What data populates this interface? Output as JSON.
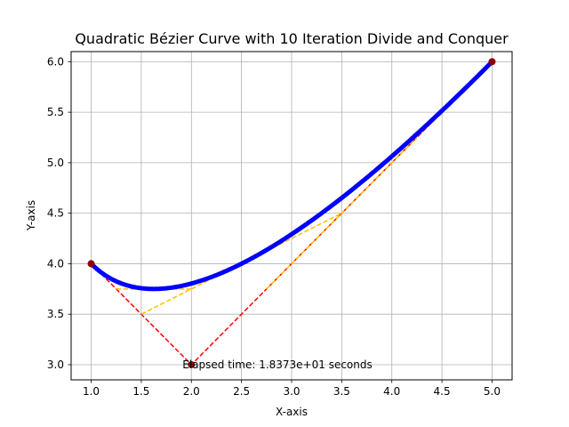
{
  "chart_data": {
    "type": "line",
    "title": "Quadratic Bézier Curve with 10 Iteration Divide and Conquer",
    "xlabel": "X-axis",
    "ylabel": "Y-axis",
    "xlim": [
      0.8,
      5.2
    ],
    "ylim": [
      2.85,
      6.1
    ],
    "xticks": [
      "1.0",
      "1.5",
      "2.0",
      "2.5",
      "3.0",
      "3.5",
      "4.0",
      "4.5",
      "5.0"
    ],
    "yticks": [
      "3.0",
      "3.5",
      "4.0",
      "4.5",
      "5.0",
      "5.5",
      "6.0"
    ],
    "grid": true,
    "control_points": [
      [
        1,
        4
      ],
      [
        2,
        3
      ],
      [
        5,
        6
      ]
    ],
    "control_polygon": {
      "color": "#ff0000",
      "style": "dashed",
      "points": [
        [
          1,
          4
        ],
        [
          2,
          3
        ],
        [
          5,
          6
        ]
      ]
    },
    "midpoint_lines": [
      {
        "color": "#ffc000",
        "style": "dashed",
        "points": [
          [
            1.5,
            3.5
          ],
          [
            3.5,
            4.5
          ]
        ]
      },
      {
        "color": "#ffc000",
        "style": "dashed",
        "points": [
          [
            1.25,
            3.75
          ],
          [
            2.0,
            3.75
          ]
        ]
      },
      {
        "color": "#ffc000",
        "style": "dashed",
        "points": [
          [
            2.75,
            3.75
          ],
          [
            4.25,
            5.25
          ]
        ]
      }
    ],
    "curve": {
      "color": "#0000ff",
      "control_points": [
        [
          1,
          4
        ],
        [
          2,
          3
        ],
        [
          5,
          6
        ]
      ]
    },
    "annotation": {
      "text": "Elapsed time: 1.8373e+01 seconds",
      "x": 2.0,
      "y": 3.0
    }
  },
  "colors": {
    "control_polygon": "#ff0000",
    "midpoints": "#ffc000",
    "curve": "#0000ff",
    "control_point": "#8b0000",
    "grid": "#b0b0b0"
  }
}
